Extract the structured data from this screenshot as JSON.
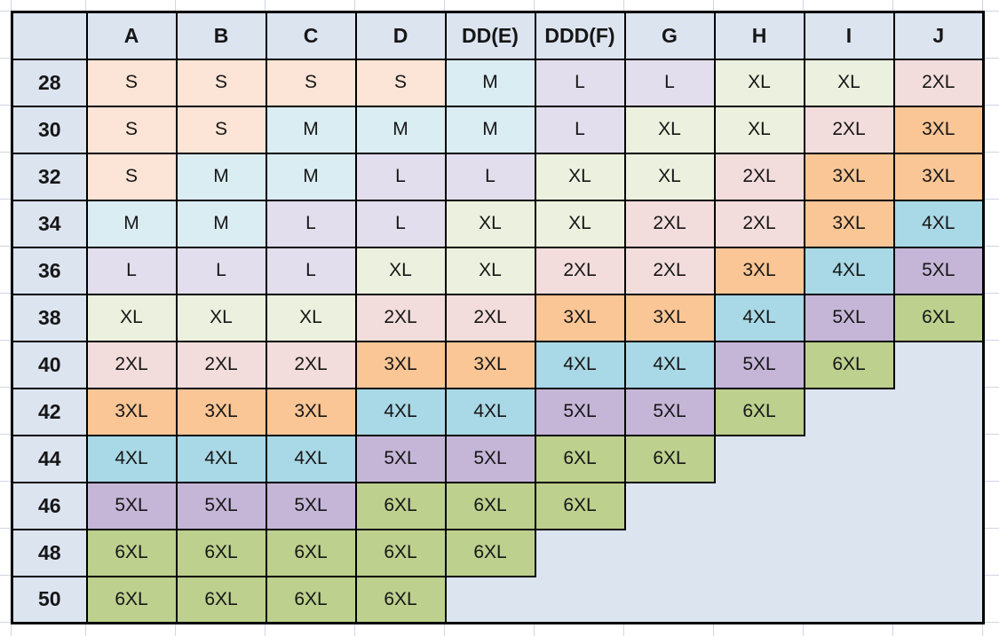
{
  "chart_data": {
    "type": "table",
    "corner_label": "",
    "columns": [
      "A",
      "B",
      "C",
      "D",
      "DD(E)",
      "DDD(F)",
      "G",
      "H",
      "I",
      "J"
    ],
    "rows": [
      {
        "label": "28",
        "values": [
          "S",
          "S",
          "S",
          "S",
          "M",
          "L",
          "L",
          "XL",
          "XL",
          "2XL"
        ]
      },
      {
        "label": "30",
        "values": [
          "S",
          "S",
          "M",
          "M",
          "M",
          "L",
          "XL",
          "XL",
          "2XL",
          "3XL"
        ]
      },
      {
        "label": "32",
        "values": [
          "S",
          "M",
          "M",
          "L",
          "L",
          "XL",
          "XL",
          "2XL",
          "3XL",
          "3XL"
        ]
      },
      {
        "label": "34",
        "values": [
          "M",
          "M",
          "L",
          "L",
          "XL",
          "XL",
          "2XL",
          "2XL",
          "3XL",
          "4XL"
        ]
      },
      {
        "label": "36",
        "values": [
          "L",
          "L",
          "L",
          "XL",
          "XL",
          "2XL",
          "2XL",
          "3XL",
          "4XL",
          "5XL"
        ]
      },
      {
        "label": "38",
        "values": [
          "XL",
          "XL",
          "XL",
          "2XL",
          "2XL",
          "3XL",
          "3XL",
          "4XL",
          "5XL",
          "6XL"
        ]
      },
      {
        "label": "40",
        "values": [
          "2XL",
          "2XL",
          "2XL",
          "3XL",
          "3XL",
          "4XL",
          "4XL",
          "5XL",
          "6XL",
          ""
        ]
      },
      {
        "label": "42",
        "values": [
          "3XL",
          "3XL",
          "3XL",
          "4XL",
          "4XL",
          "5XL",
          "5XL",
          "6XL",
          "",
          ""
        ]
      },
      {
        "label": "44",
        "values": [
          "4XL",
          "4XL",
          "4XL",
          "5XL",
          "5XL",
          "6XL",
          "6XL",
          "",
          "",
          ""
        ]
      },
      {
        "label": "46",
        "values": [
          "5XL",
          "5XL",
          "5XL",
          "6XL",
          "6XL",
          "6XL",
          "",
          "",
          "",
          ""
        ]
      },
      {
        "label": "48",
        "values": [
          "6XL",
          "6XL",
          "6XL",
          "6XL",
          "6XL",
          "",
          "",
          "",
          "",
          ""
        ]
      },
      {
        "label": "50",
        "values": [
          "6XL",
          "6XL",
          "6XL",
          "6XL",
          "",
          "",
          "",
          "",
          "",
          ""
        ]
      }
    ],
    "colors": {
      "header_bg": "#DCE4F0",
      "empty_bg": "#DCE4F0",
      "table_border": "#000000",
      "sheet_gridline": "#CCD6E5",
      "text": "#161616",
      "value_fills": {
        "S": "#FCE4D6",
        "M": "#DAEDF3",
        "L": "#E3DEED",
        "XL": "#EBF1DE",
        "2XL": "#F2DDDC",
        "3XL": "#FAC696",
        "4XL": "#A9D8E6",
        "5XL": "#C5B6D8",
        "6XL": "#BDD08E"
      }
    },
    "layout": {
      "legend": "none",
      "grid": "spreadsheet-gridlines-outside-table"
    }
  }
}
